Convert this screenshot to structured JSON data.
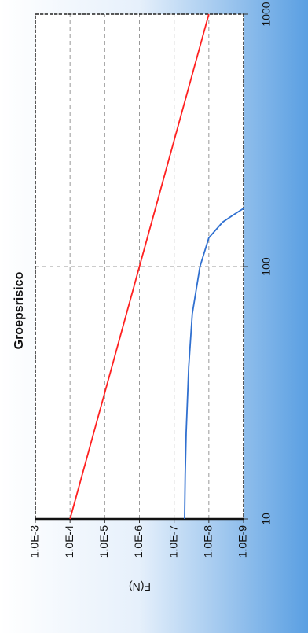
{
  "chart_data": {
    "type": "line",
    "title": "Groepsrisico",
    "ylabel": "F(N)",
    "xscale": "log",
    "yscale": "log",
    "xlim": [
      10,
      1000
    ],
    "xticks": [
      10,
      100,
      1000
    ],
    "ylim": [
      1e-09,
      0.001
    ],
    "yticks": [
      {
        "value": 0.001,
        "label": "1.0E-3"
      },
      {
        "value": 0.0001,
        "label": "1.0E-4"
      },
      {
        "value": 1e-05,
        "label": "1.0E-5"
      },
      {
        "value": 1e-06,
        "label": "1.0E-6"
      },
      {
        "value": 1e-07,
        "label": "1.0E-7"
      },
      {
        "value": 1e-08,
        "label": "1.0E-8"
      },
      {
        "value": 1e-09,
        "label": "1.0E-9"
      }
    ],
    "grid": true,
    "series": [
      {
        "color": "#ff2020",
        "x": [
          10,
          1000
        ],
        "values": [
          0.0001,
          1e-08
        ]
      },
      {
        "color": "#3070d0",
        "x": [
          10,
          15,
          22,
          40,
          65,
          100,
          130,
          150,
          160,
          170
        ],
        "values": [
          5e-08,
          4.8e-08,
          4.5e-08,
          3.8e-08,
          3e-08,
          1.8e-08,
          1e-08,
          4e-09,
          2e-09,
          1e-09
        ]
      }
    ]
  }
}
